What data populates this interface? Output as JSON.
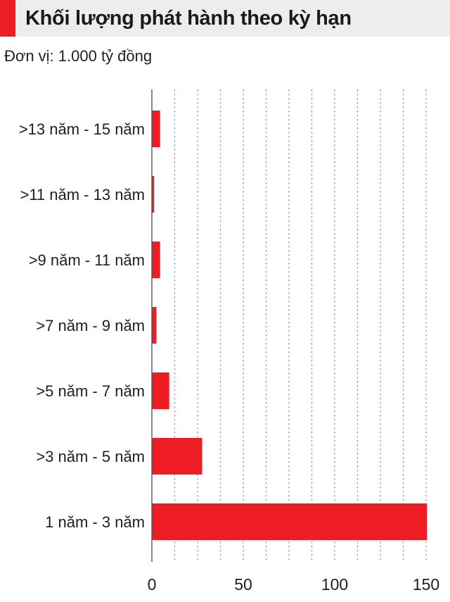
{
  "header": {
    "title": "Khối lượng phát hành theo kỳ hạn",
    "unit": "Đơn vị: 1.000 tỷ đồng"
  },
  "colors": {
    "bar": "#ee1c25",
    "accent": "#ee1c25",
    "grid": "#9a9a9a",
    "axis": "#555555",
    "title_bg": "#ededed"
  },
  "chart_data": {
    "type": "bar",
    "orientation": "horizontal",
    "title": "Khối lượng phát hành theo kỳ hạn",
    "unit": "Đơn vị: 1.000 tỷ đồng",
    "categories": [
      ">13 năm - 15 năm",
      ">11 năm - 13 năm",
      ">9 năm - 11 năm",
      ">7 năm - 9 năm",
      ">5 năm - 7 năm",
      ">3 năm - 5 năm",
      "1 năm - 3 năm"
    ],
    "values": [
      4.5,
      1.2,
      4.5,
      2.5,
      9.5,
      27.5,
      150.5
    ],
    "xlim": [
      0,
      160
    ],
    "ticks": [
      0,
      50,
      100,
      150
    ],
    "tick_labels": [
      "0",
      "50",
      "100",
      "150"
    ],
    "grid_step": 12.5,
    "grid": true,
    "xlabel": "",
    "ylabel": ""
  }
}
